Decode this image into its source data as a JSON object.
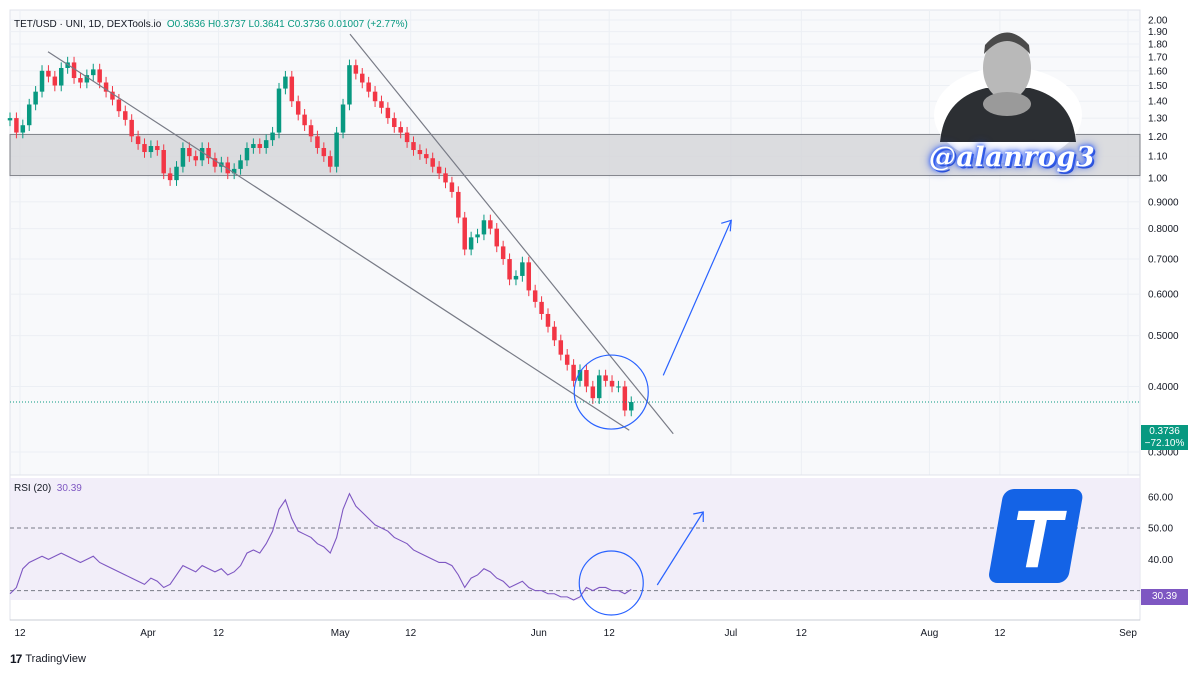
{
  "header": {
    "symbol": "TET/USD · UNI, 1D, DEXTools.io",
    "ohlc": "O0.3636  H0.3737  L0.3641  C0.3736  0.01007 (+2.77%)"
  },
  "overlay": {
    "handle": "@alanrog3"
  },
  "branding": {
    "logo_text": "TradingView",
    "accent_logo_letter": "T"
  },
  "price_label": {
    "value": "0.3736",
    "change": "−72.10%"
  },
  "rsi_label": {
    "name": "RSI (20)",
    "value": "30.39"
  },
  "colors": {
    "up": "#089981",
    "down": "#f23645",
    "rsi": "#7e57c2",
    "annotation": "#2962ff",
    "brand_logo": "#1463e6"
  },
  "chart_data": [
    {
      "type": "candlestick",
      "title": "TET/USD · UNI, 1D, DEXTools.io",
      "x_axis": {
        "tick_labels": [
          "12",
          "Apr",
          "12",
          "May",
          "12",
          "Jun",
          "12",
          "Jul",
          "12",
          "Aug",
          "12",
          "Sep"
        ],
        "tick_dates": [
          "2023-03-12",
          "2023-04-01",
          "2023-04-12",
          "2023-05-01",
          "2023-05-12",
          "2023-06-01",
          "2023-06-12",
          "2023-07-01",
          "2023-07-12",
          "2023-08-01",
          "2023-08-12",
          "2023-09-01"
        ]
      },
      "y_axis": {
        "ticks": [
          "2.00",
          "1.90",
          "1.80",
          "1.70",
          "1.60",
          "1.50",
          "1.40",
          "1.30",
          "1.20",
          "1.10",
          "1.00",
          "0.9000",
          "0.8000",
          "0.7000",
          "0.6000",
          "0.5000",
          "0.4000",
          "0.3000"
        ],
        "scale": "log",
        "range": [
          0.3,
          2.0
        ]
      },
      "support_zone": {
        "from": 1.01,
        "to": 1.21
      },
      "closes": [
        1.3,
        1.22,
        1.26,
        1.38,
        1.46,
        1.6,
        1.56,
        1.5,
        1.62,
        1.66,
        1.55,
        1.52,
        1.57,
        1.61,
        1.52,
        1.46,
        1.41,
        1.34,
        1.29,
        1.2,
        1.16,
        1.12,
        1.15,
        1.13,
        1.02,
        0.99,
        1.05,
        1.14,
        1.1,
        1.08,
        1.14,
        1.09,
        1.05,
        1.07,
        1.02,
        1.04,
        1.08,
        1.14,
        1.16,
        1.14,
        1.18,
        1.22,
        1.48,
        1.56,
        1.4,
        1.32,
        1.26,
        1.2,
        1.14,
        1.1,
        1.05,
        1.22,
        1.38,
        1.64,
        1.58,
        1.52,
        1.46,
        1.4,
        1.36,
        1.3,
        1.25,
        1.22,
        1.17,
        1.13,
        1.11,
        1.09,
        1.05,
        1.02,
        0.98,
        0.94,
        0.84,
        0.73,
        0.77,
        0.78,
        0.83,
        0.8,
        0.74,
        0.7,
        0.64,
        0.65,
        0.69,
        0.61,
        0.58,
        0.55,
        0.52,
        0.49,
        0.46,
        0.44,
        0.41,
        0.43,
        0.4,
        0.38,
        0.42,
        0.41,
        0.4,
        0.4,
        0.36,
        0.3736
      ],
      "last_close": 0.3736,
      "last_change": "−72.10%"
    },
    {
      "type": "line",
      "title": "RSI (20)",
      "y_axis": {
        "ticks": [
          "60.00",
          "50.00",
          "40.00"
        ],
        "range": [
          27,
          66
        ]
      },
      "reference_lines": [
        30,
        50
      ],
      "values": [
        29,
        31,
        37,
        39,
        40,
        41,
        40,
        41,
        42,
        41,
        40,
        39,
        40,
        41,
        39,
        38,
        37,
        36,
        35,
        34,
        33,
        32,
        34,
        33,
        31,
        32,
        35,
        38,
        37,
        36,
        38,
        37,
        36,
        37,
        35,
        36,
        38,
        42,
        43,
        42,
        45,
        49,
        56,
        59,
        53,
        49,
        48,
        47,
        45,
        44,
        42,
        47,
        56,
        61,
        57,
        55,
        53,
        51,
        50,
        49,
        47,
        46,
        45,
        43,
        42,
        41,
        40,
        39,
        39,
        38,
        35,
        31,
        34,
        35,
        37,
        36,
        34,
        33,
        31,
        32,
        33,
        31,
        30,
        30,
        29,
        29,
        28,
        28,
        27,
        28,
        31,
        30,
        31,
        31,
        30,
        30,
        29,
        30.39
      ],
      "last_value": 30.39
    }
  ]
}
